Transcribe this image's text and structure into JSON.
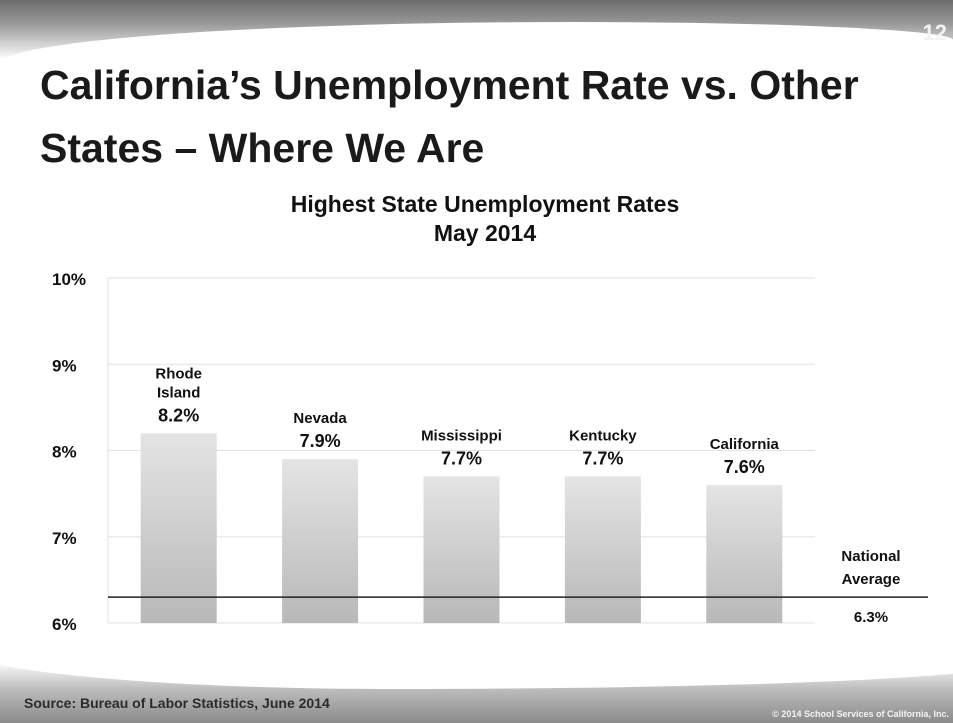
{
  "slide": {
    "number": "12",
    "title": "California’s Unemployment Rate vs. Other States – Where We Are",
    "source": "Source: Bureau of Labor Statistics, June 2014",
    "copyright": "© 2014 School Services of California, Inc."
  },
  "chart_data": {
    "type": "bar",
    "title": "Highest State Unemployment Rates",
    "subtitle": "May 2014",
    "categories": [
      "Rhode Island",
      "Nevada",
      "Mississippi",
      "Kentucky",
      "California"
    ],
    "values": [
      8.2,
      7.9,
      7.7,
      7.7,
      7.6
    ],
    "value_labels": [
      "8.2%",
      "7.9%",
      "7.7%",
      "7.7%",
      "7.6%"
    ],
    "ylim": [
      6,
      10
    ],
    "yticks": [
      10,
      9,
      8,
      7,
      6
    ],
    "ytick_labels": [
      "10%",
      "9%",
      "8%",
      "7%",
      "6%"
    ],
    "grid": true,
    "reference_line": {
      "value": 6.3,
      "label": "National Average",
      "value_label": "6.3%"
    },
    "colors": {
      "bar_top": "#e4e4e4",
      "bar_bottom": "#b8b8b8",
      "grid": "#e2e2e2",
      "reference_line": "#222222",
      "text": "#111111"
    }
  }
}
